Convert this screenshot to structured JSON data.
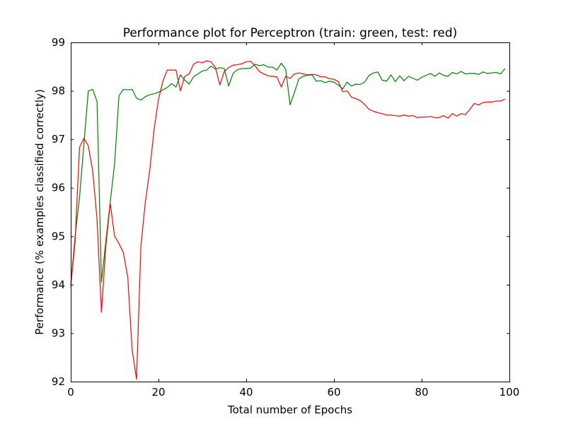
{
  "chart_data": {
    "type": "line",
    "title": "Performance plot for Perceptron (train: green, test: red)",
    "xlabel": "Total number of Epochs",
    "ylabel": "Performance (% examples classified correctly)",
    "xlim": [
      0,
      100
    ],
    "ylim": [
      92,
      99
    ],
    "xticks": [
      0,
      20,
      40,
      60,
      80,
      100
    ],
    "yticks": [
      92,
      93,
      94,
      95,
      96,
      97,
      98,
      99
    ],
    "grid": false,
    "legend": "none",
    "series": [
      {
        "name": "train",
        "color": "#008000",
        "x": [
          0,
          1,
          2,
          3,
          4,
          5,
          6,
          7,
          8,
          9,
          10,
          11,
          12,
          13,
          14,
          15,
          16,
          17,
          18,
          19,
          20,
          21,
          22,
          23,
          24,
          25,
          26,
          27,
          28,
          29,
          30,
          31,
          32,
          33,
          34,
          35,
          36,
          37,
          38,
          39,
          40,
          41,
          42,
          43,
          44,
          45,
          46,
          47,
          48,
          49,
          50,
          51,
          52,
          53,
          54,
          55,
          56,
          57,
          58,
          59,
          60,
          61,
          62,
          63,
          64,
          65,
          66,
          67,
          68,
          69,
          70,
          71,
          72,
          73,
          74,
          75,
          76,
          77,
          78,
          79,
          80,
          81,
          82,
          83,
          84,
          85,
          86,
          87,
          88,
          89,
          90,
          91,
          92,
          93,
          94,
          95,
          96,
          97,
          98,
          99
        ],
        "values": [
          94.0,
          95.0,
          95.8,
          96.9,
          98.0,
          98.03,
          97.78,
          94.05,
          94.9,
          95.7,
          96.5,
          97.9,
          98.03,
          98.02,
          98.03,
          97.85,
          97.81,
          97.88,
          97.92,
          97.94,
          97.97,
          98.02,
          98.07,
          98.15,
          98.08,
          98.33,
          98.22,
          98.14,
          98.29,
          98.35,
          98.41,
          98.43,
          98.51,
          98.45,
          98.48,
          98.46,
          98.1,
          98.36,
          98.44,
          98.46,
          98.46,
          98.47,
          98.55,
          98.52,
          98.54,
          98.49,
          98.49,
          98.43,
          98.57,
          98.45,
          97.71,
          97.97,
          98.25,
          98.3,
          98.32,
          98.33,
          98.2,
          98.21,
          98.17,
          98.2,
          98.18,
          98.12,
          98.04,
          98.18,
          98.1,
          98.14,
          98.13,
          98.18,
          98.32,
          98.37,
          98.39,
          98.22,
          98.2,
          98.33,
          98.19,
          98.31,
          98.21,
          98.3,
          98.26,
          98.22,
          98.28,
          98.32,
          98.36,
          98.3,
          98.37,
          98.32,
          98.3,
          98.38,
          98.35,
          98.4,
          98.35,
          98.36,
          98.36,
          98.34,
          98.39,
          98.36,
          98.37,
          98.38,
          98.35,
          98.46
        ]
      },
      {
        "name": "test",
        "color": "#ff0000",
        "x": [
          0,
          1,
          2,
          3,
          4,
          5,
          6,
          7,
          8,
          9,
          10,
          11,
          12,
          13,
          14,
          15,
          16,
          17,
          18,
          19,
          20,
          21,
          22,
          23,
          24,
          25,
          26,
          27,
          28,
          29,
          30,
          31,
          32,
          33,
          34,
          35,
          36,
          37,
          38,
          39,
          40,
          41,
          42,
          43,
          44,
          45,
          46,
          47,
          48,
          49,
          50,
          51,
          52,
          53,
          54,
          55,
          56,
          57,
          58,
          59,
          60,
          61,
          62,
          63,
          64,
          65,
          66,
          67,
          68,
          69,
          70,
          71,
          72,
          73,
          74,
          75,
          76,
          77,
          78,
          79,
          80,
          81,
          82,
          83,
          84,
          85,
          86,
          87,
          88,
          89,
          90,
          91,
          92,
          93,
          94,
          95,
          96,
          97,
          98,
          99
        ],
        "values": [
          93.95,
          94.9,
          96.83,
          97.02,
          96.87,
          96.35,
          95.35,
          93.43,
          94.8,
          95.68,
          95.0,
          94.85,
          94.66,
          94.16,
          92.65,
          92.05,
          94.8,
          95.7,
          96.35,
          97.2,
          97.82,
          98.2,
          98.43,
          98.43,
          98.43,
          98.0,
          98.3,
          98.35,
          98.55,
          98.6,
          98.58,
          98.62,
          98.6,
          98.48,
          98.12,
          98.4,
          98.48,
          98.53,
          98.54,
          98.56,
          98.6,
          98.61,
          98.52,
          98.4,
          98.35,
          98.31,
          98.3,
          98.29,
          98.08,
          98.3,
          98.26,
          98.35,
          98.37,
          98.35,
          98.33,
          98.34,
          98.33,
          98.29,
          98.29,
          98.25,
          98.24,
          98.19,
          97.98,
          98.0,
          97.87,
          97.84,
          97.8,
          97.72,
          97.62,
          97.58,
          97.55,
          97.53,
          97.5,
          97.5,
          97.49,
          97.48,
          97.5,
          97.48,
          97.49,
          97.45,
          97.46,
          97.46,
          97.47,
          97.45,
          97.45,
          97.49,
          97.44,
          97.53,
          97.48,
          97.53,
          97.51,
          97.62,
          97.74,
          97.71,
          97.76,
          97.77,
          97.77,
          97.79,
          97.79,
          97.83
        ]
      }
    ]
  }
}
